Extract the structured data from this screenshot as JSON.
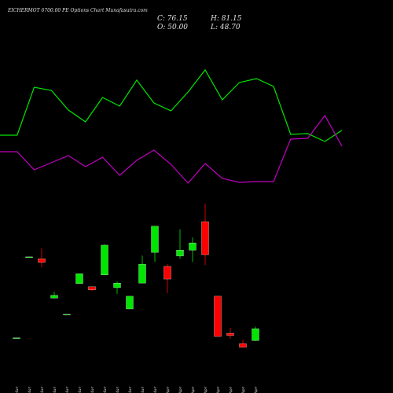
{
  "chart_data": [
    {
      "type": "line",
      "ylim": [
        0,
        100
      ],
      "series": [
        {
          "color": "#00e600",
          "values": [
            42.5,
            42.5,
            80.6,
            78.1,
            62.5,
            53.1,
            72.5,
            65.6,
            86.3,
            68.1,
            61.9,
            76.9,
            94.4,
            70.6,
            84.4,
            87.5,
            81.3,
            43.1,
            43.8,
            37.5,
            46.3
          ]
        },
        {
          "color": "#c000c0",
          "values": [
            29.4,
            29.4,
            15,
            20.6,
            26.3,
            17.5,
            25,
            10.6,
            22.5,
            30.6,
            19.4,
            4.4,
            20,
            8.1,
            5,
            5.6,
            5.6,
            39.4,
            40,
            58.1,
            33.8
          ]
        }
      ]
    },
    {
      "type": "candlestick",
      "title": "EICHERMOT 6700.00 PE Options  Chart Munafasutra.com",
      "ohlc_labels": [
        "C: 76.15",
        "O: 50.00",
        "H: 81.15",
        "L: 48.70"
      ],
      "up_color": "#00e600",
      "down_color": "#ff0000",
      "ylim": [
        0,
        400
      ],
      "categories": [
        "11 Mar",
        "12 Mar",
        "16 Mar",
        "17 Mar",
        "18 Mar",
        "19 Mar",
        "20 Mar",
        "23 Mar",
        "24 Mar",
        "26 Mar",
        "27 Mar",
        "30 Mar",
        "01 Apr",
        "02 Apr",
        "06 Apr",
        "07 Apr",
        "08 Apr",
        "09 Apr",
        "13 Apr",
        "15 Apr"
      ],
      "open": [
        55,
        234,
        231,
        144,
        108,
        176,
        169,
        195,
        167,
        120,
        177,
        245,
        214,
        237,
        250,
        313,
        148,
        66,
        43,
        50.0
      ],
      "high": [
        56,
        235,
        254,
        158,
        108,
        198,
        169,
        263,
        181,
        148,
        238,
        303,
        219,
        296,
        278,
        353,
        148,
        78,
        52,
        81.15
      ],
      "low": [
        55,
        234,
        212,
        143,
        108,
        176,
        160,
        195,
        153,
        120,
        177,
        224,
        155,
        231,
        224,
        217,
        59,
        54,
        35,
        48.7
      ],
      "close": [
        56,
        235,
        223,
        150,
        108,
        198,
        162,
        261,
        177,
        148,
        219,
        303,
        186,
        250,
        266,
        240,
        59,
        61,
        35,
        76.15
      ]
    }
  ]
}
